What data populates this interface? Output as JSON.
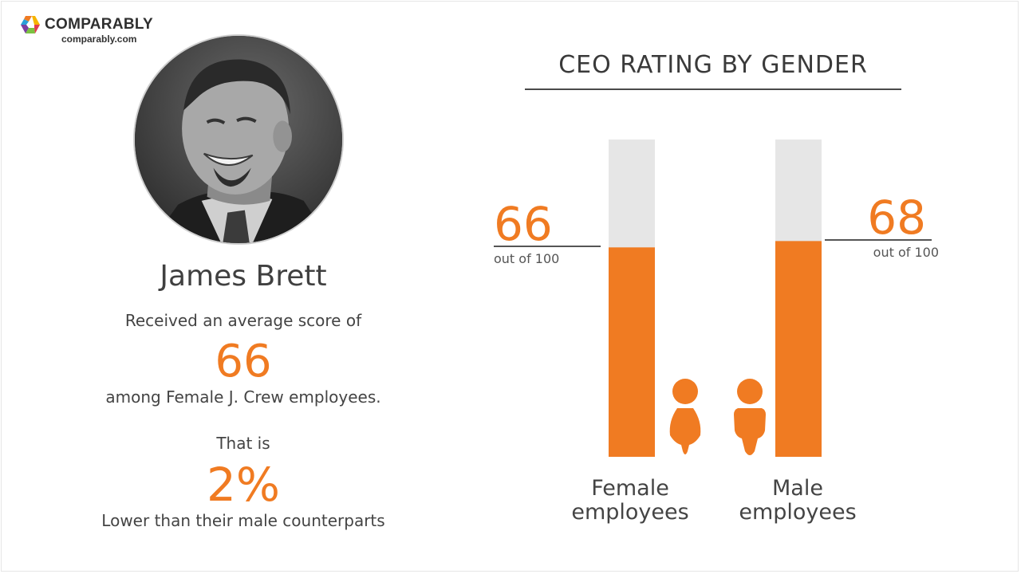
{
  "brand": {
    "name": "COMPARABLY",
    "url": "comparably.com",
    "colors": {
      "accent": "#f07b22",
      "track": "#e6e6e6",
      "text": "#444444"
    }
  },
  "profile": {
    "name": "James Brett",
    "line1": "Received an average score of",
    "score": "66",
    "line2": "among Female J. Crew employees.",
    "line3": "That is",
    "difference": "2%",
    "line4": "Lower than their male counterparts"
  },
  "chart_data": {
    "type": "bar",
    "title": "CEO RATING BY GENDER",
    "categories": [
      "Female employees",
      "Male employees"
    ],
    "category_lines": [
      [
        "Female",
        "employees"
      ],
      [
        "Male",
        "employees"
      ]
    ],
    "values": [
      66,
      68
    ],
    "value_labels": [
      "66",
      "68"
    ],
    "scale_label": "out of 100",
    "ylim": [
      0,
      100
    ],
    "icons": [
      "female-person-icon",
      "male-person-icon"
    ]
  }
}
